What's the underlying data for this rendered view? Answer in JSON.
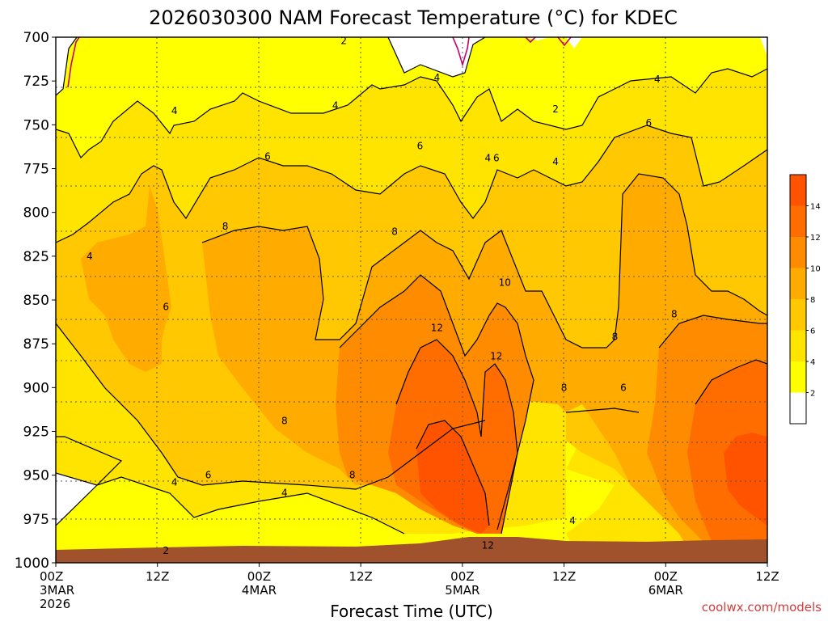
{
  "chart_data": {
    "type": "contour",
    "title": "2026030300 NAM Forecast Temperature (°C) for KDEC",
    "xlabel": "Forecast Time (UTC)",
    "ylabel": "",
    "x_ticks": [
      {
        "lines": [
          "00Z",
          "3MAR",
          "2026"
        ]
      },
      {
        "lines": [
          "12Z"
        ]
      },
      {
        "lines": [
          "00Z",
          "4MAR"
        ]
      },
      {
        "lines": [
          "12Z"
        ]
      },
      {
        "lines": [
          "00Z",
          "5MAR"
        ]
      },
      {
        "lines": [
          "12Z"
        ]
      },
      {
        "lines": [
          "00Z",
          "6MAR"
        ]
      },
      {
        "lines": [
          "12Z"
        ]
      }
    ],
    "x_range_hours": [
      0,
      84
    ],
    "y_ticks": [
      "700",
      "725",
      "750",
      "775",
      "800",
      "825",
      "850",
      "875",
      "900",
      "925",
      "950",
      "975",
      "1000"
    ],
    "y_range_hpa": [
      700,
      1000
    ],
    "y_reversed": true,
    "grid": true,
    "colorbar": {
      "levels": [
        0,
        2,
        4,
        6,
        8,
        10,
        12,
        14,
        16
      ],
      "tick_labels": [
        "2",
        "4",
        "6",
        "8",
        "10",
        "12",
        "14"
      ],
      "colors": [
        "#ffffff",
        "#ffff00",
        "#ffe400",
        "#ffc800",
        "#ffab00",
        "#ff8c00",
        "#ff6d00",
        "#ff5300"
      ]
    },
    "contour_labels": [
      {
        "text": "2",
        "t": 34,
        "p": 702
      },
      {
        "text": "4",
        "t": 14,
        "p": 742
      },
      {
        "text": "4",
        "t": 33,
        "p": 739
      },
      {
        "text": "4",
        "t": 45,
        "p": 723
      },
      {
        "text": "6",
        "t": 25,
        "p": 768
      },
      {
        "text": "6",
        "t": 43,
        "p": 762
      },
      {
        "text": "4",
        "t": 51,
        "p": 769
      },
      {
        "text": "6",
        "t": 52,
        "p": 769
      },
      {
        "text": "2",
        "t": 59,
        "p": 741
      },
      {
        "text": "4",
        "t": 59,
        "p": 771
      },
      {
        "text": "4",
        "t": 71,
        "p": 724
      },
      {
        "text": "6",
        "t": 70,
        "p": 749
      },
      {
        "text": "4",
        "t": 4,
        "p": 825
      },
      {
        "text": "6",
        "t": 13,
        "p": 854
      },
      {
        "text": "8",
        "t": 20,
        "p": 808
      },
      {
        "text": "8",
        "t": 40,
        "p": 811
      },
      {
        "text": "10",
        "t": 53,
        "p": 840
      },
      {
        "text": "12",
        "t": 45,
        "p": 866
      },
      {
        "text": "12",
        "t": 52,
        "p": 882
      },
      {
        "text": "8",
        "t": 66,
        "p": 871
      },
      {
        "text": "8",
        "t": 73,
        "p": 858
      },
      {
        "text": "8",
        "t": 60,
        "p": 900
      },
      {
        "text": "6",
        "t": 67,
        "p": 900
      },
      {
        "text": "8",
        "t": 27,
        "p": 919
      },
      {
        "text": "4",
        "t": 14,
        "p": 954
      },
      {
        "text": "6",
        "t": 18,
        "p": 950
      },
      {
        "text": "4",
        "t": 27,
        "p": 960
      },
      {
        "text": "8",
        "t": 35,
        "p": 950
      },
      {
        "text": "4",
        "t": 61,
        "p": 976
      },
      {
        "text": "12",
        "t": 51,
        "p": 990
      },
      {
        "text": "2",
        "t": 13,
        "p": 993
      }
    ]
  },
  "credit": "coolwx.com/models"
}
